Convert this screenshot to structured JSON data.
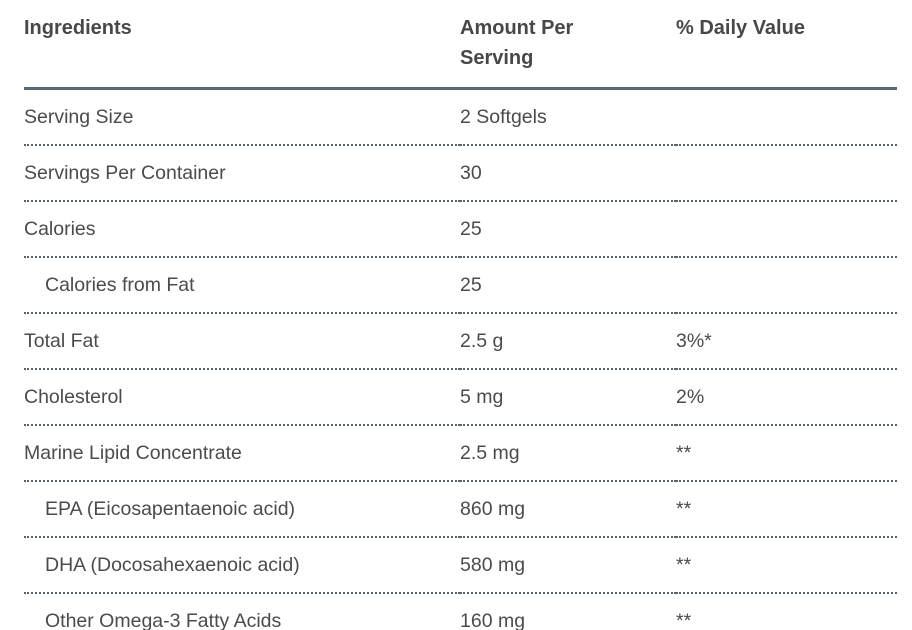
{
  "table": {
    "columns": {
      "ingredients": "Ingredients",
      "amount_per_serving": "Amount Per Serving",
      "daily_value": "% Daily Value"
    },
    "rows": [
      {
        "ingredient": "Serving Size",
        "amount": "2 Softgels",
        "daily_value": "",
        "indent": false
      },
      {
        "ingredient": "Servings Per Container",
        "amount": "30",
        "daily_value": "",
        "indent": false
      },
      {
        "ingredient": "Calories",
        "amount": "25",
        "daily_value": "",
        "indent": false
      },
      {
        "ingredient": "Calories from Fat",
        "amount": "25",
        "daily_value": "",
        "indent": true
      },
      {
        "ingredient": "Total Fat",
        "amount": "2.5 g",
        "daily_value": "3%*",
        "indent": false
      },
      {
        "ingredient": "Cholesterol",
        "amount": "5 mg",
        "daily_value": "2%",
        "indent": false
      },
      {
        "ingredient": "Marine Lipid Concentrate",
        "amount": "2.5 mg",
        "daily_value": "**",
        "indent": false
      },
      {
        "ingredient": "EPA (Eicosapentaenoic acid)",
        "amount": "860 mg",
        "daily_value": "**",
        "indent": true
      },
      {
        "ingredient": "DHA (Docosahexaenoic acid)",
        "amount": "580 mg",
        "daily_value": "**",
        "indent": true
      },
      {
        "ingredient": "Other Omega-3 Fatty Acids",
        "amount": "160 mg",
        "daily_value": "**",
        "indent": true
      }
    ],
    "colors": {
      "header_border": "#5a6a73",
      "row_border": "#55646e",
      "text": "#4a4b4d"
    }
  }
}
